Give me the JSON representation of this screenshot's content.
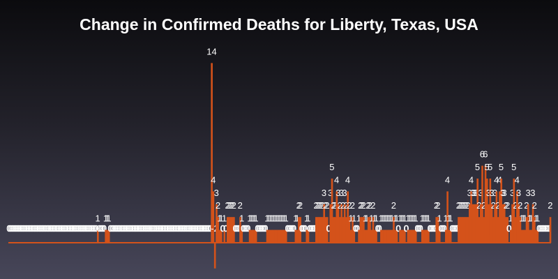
{
  "chart_data": {
    "type": "bar",
    "title": "Change in Confirmed Deaths for Liberty, Texas, USA",
    "xlabel": "",
    "ylabel": "",
    "ylim": [
      -3,
      16
    ],
    "grid": false,
    "legend": "none",
    "bar_color": "#d4521a",
    "label_color": "#ffffff",
    "values": [
      0,
      0,
      0,
      0,
      0,
      0,
      0,
      0,
      0,
      0,
      0,
      0,
      0,
      0,
      0,
      0,
      0,
      0,
      0,
      0,
      0,
      0,
      0,
      0,
      0,
      0,
      0,
      0,
      0,
      0,
      0,
      0,
      0,
      0,
      0,
      0,
      0,
      0,
      0,
      0,
      0,
      0,
      0,
      0,
      0,
      0,
      0,
      0,
      0,
      0,
      0,
      0,
      0,
      0,
      0,
      0,
      1,
      0,
      0,
      0,
      0,
      1,
      1,
      1,
      0,
      0,
      0,
      0,
      0,
      0,
      0,
      0,
      0,
      0,
      0,
      0,
      0,
      0,
      0,
      0,
      0,
      0,
      0,
      0,
      0,
      0,
      0,
      0,
      0,
      0,
      0,
      0,
      0,
      0,
      0,
      0,
      0,
      0,
      0,
      0,
      0,
      0,
      0,
      0,
      0,
      0,
      0,
      0,
      0,
      0,
      0,
      0,
      0,
      0,
      0,
      0,
      0,
      0,
      0,
      0,
      0,
      0,
      0,
      0,
      0,
      0,
      0,
      0,
      14,
      4,
      -2,
      3,
      2,
      1,
      1,
      0,
      1,
      0,
      2,
      2,
      2,
      2,
      2,
      0,
      0,
      0,
      2,
      1,
      0,
      0,
      0,
      0,
      1,
      1,
      1,
      1,
      1,
      0,
      0,
      0,
      0,
      0,
      0,
      1,
      1,
      1,
      1,
      1,
      1,
      1,
      1,
      1,
      1,
      1,
      1,
      1,
      0,
      0,
      0,
      0,
      0,
      1,
      1,
      2,
      2,
      0,
      0,
      0,
      1,
      1,
      0,
      0,
      0,
      0,
      2,
      2,
      2,
      2,
      2,
      3,
      2,
      2,
      0,
      3,
      5,
      2,
      2,
      4,
      3,
      2,
      3,
      2,
      3,
      2,
      4,
      2,
      1,
      2,
      1,
      0,
      0,
      1,
      2,
      2,
      2,
      1,
      1,
      2,
      2,
      1,
      2,
      1,
      1,
      0,
      0,
      1,
      1,
      1,
      1,
      1,
      1,
      1,
      1,
      2,
      1,
      1,
      0,
      1,
      1,
      1,
      1,
      0,
      1,
      1,
      1,
      1,
      1,
      1,
      0,
      0,
      0,
      1,
      1,
      1,
      1,
      1,
      0,
      0,
      0,
      0,
      2,
      2,
      1,
      0,
      0,
      0,
      1,
      4,
      1,
      1,
      0,
      0,
      0,
      0,
      2,
      2,
      2,
      2,
      2,
      2,
      2,
      3,
      4,
      3,
      3,
      3,
      5,
      2,
      3,
      6,
      2,
      6,
      5,
      3,
      5,
      3,
      2,
      3,
      4,
      2,
      4,
      5,
      3,
      3,
      2,
      2,
      0,
      1,
      3,
      5,
      2,
      4,
      3,
      2,
      1,
      1,
      1,
      2,
      3,
      1,
      1,
      3,
      2,
      1,
      1,
      0,
      0,
      0,
      0,
      0,
      0,
      0,
      2
    ]
  }
}
